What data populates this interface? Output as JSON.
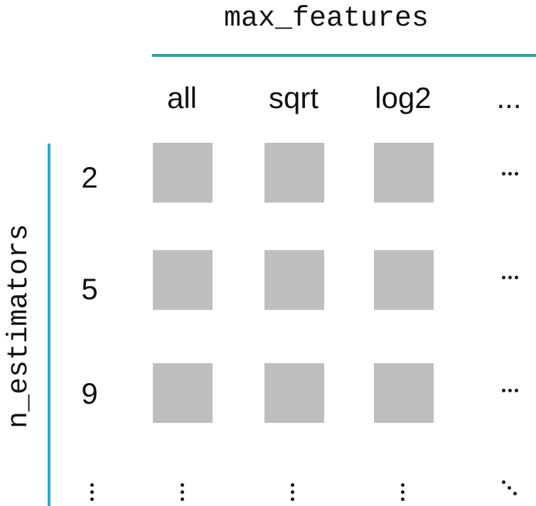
{
  "column_parameter": "max_features",
  "row_parameter": "n_estimators",
  "columns": [
    "all",
    "sqrt",
    "log2",
    "..."
  ],
  "rows": [
    "2",
    "5",
    "9"
  ],
  "colors": {
    "column_rule": "#26A69A",
    "row_rule": "#29A9DB",
    "cell_fill": "#BDBEC0",
    "text": "#111111"
  },
  "icons": {
    "continuation_horizontal": "horizontal-ellipsis-icon",
    "continuation_vertical": "vertical-ellipsis-icon",
    "continuation_diagonal": "diagonal-ellipsis-icon"
  }
}
